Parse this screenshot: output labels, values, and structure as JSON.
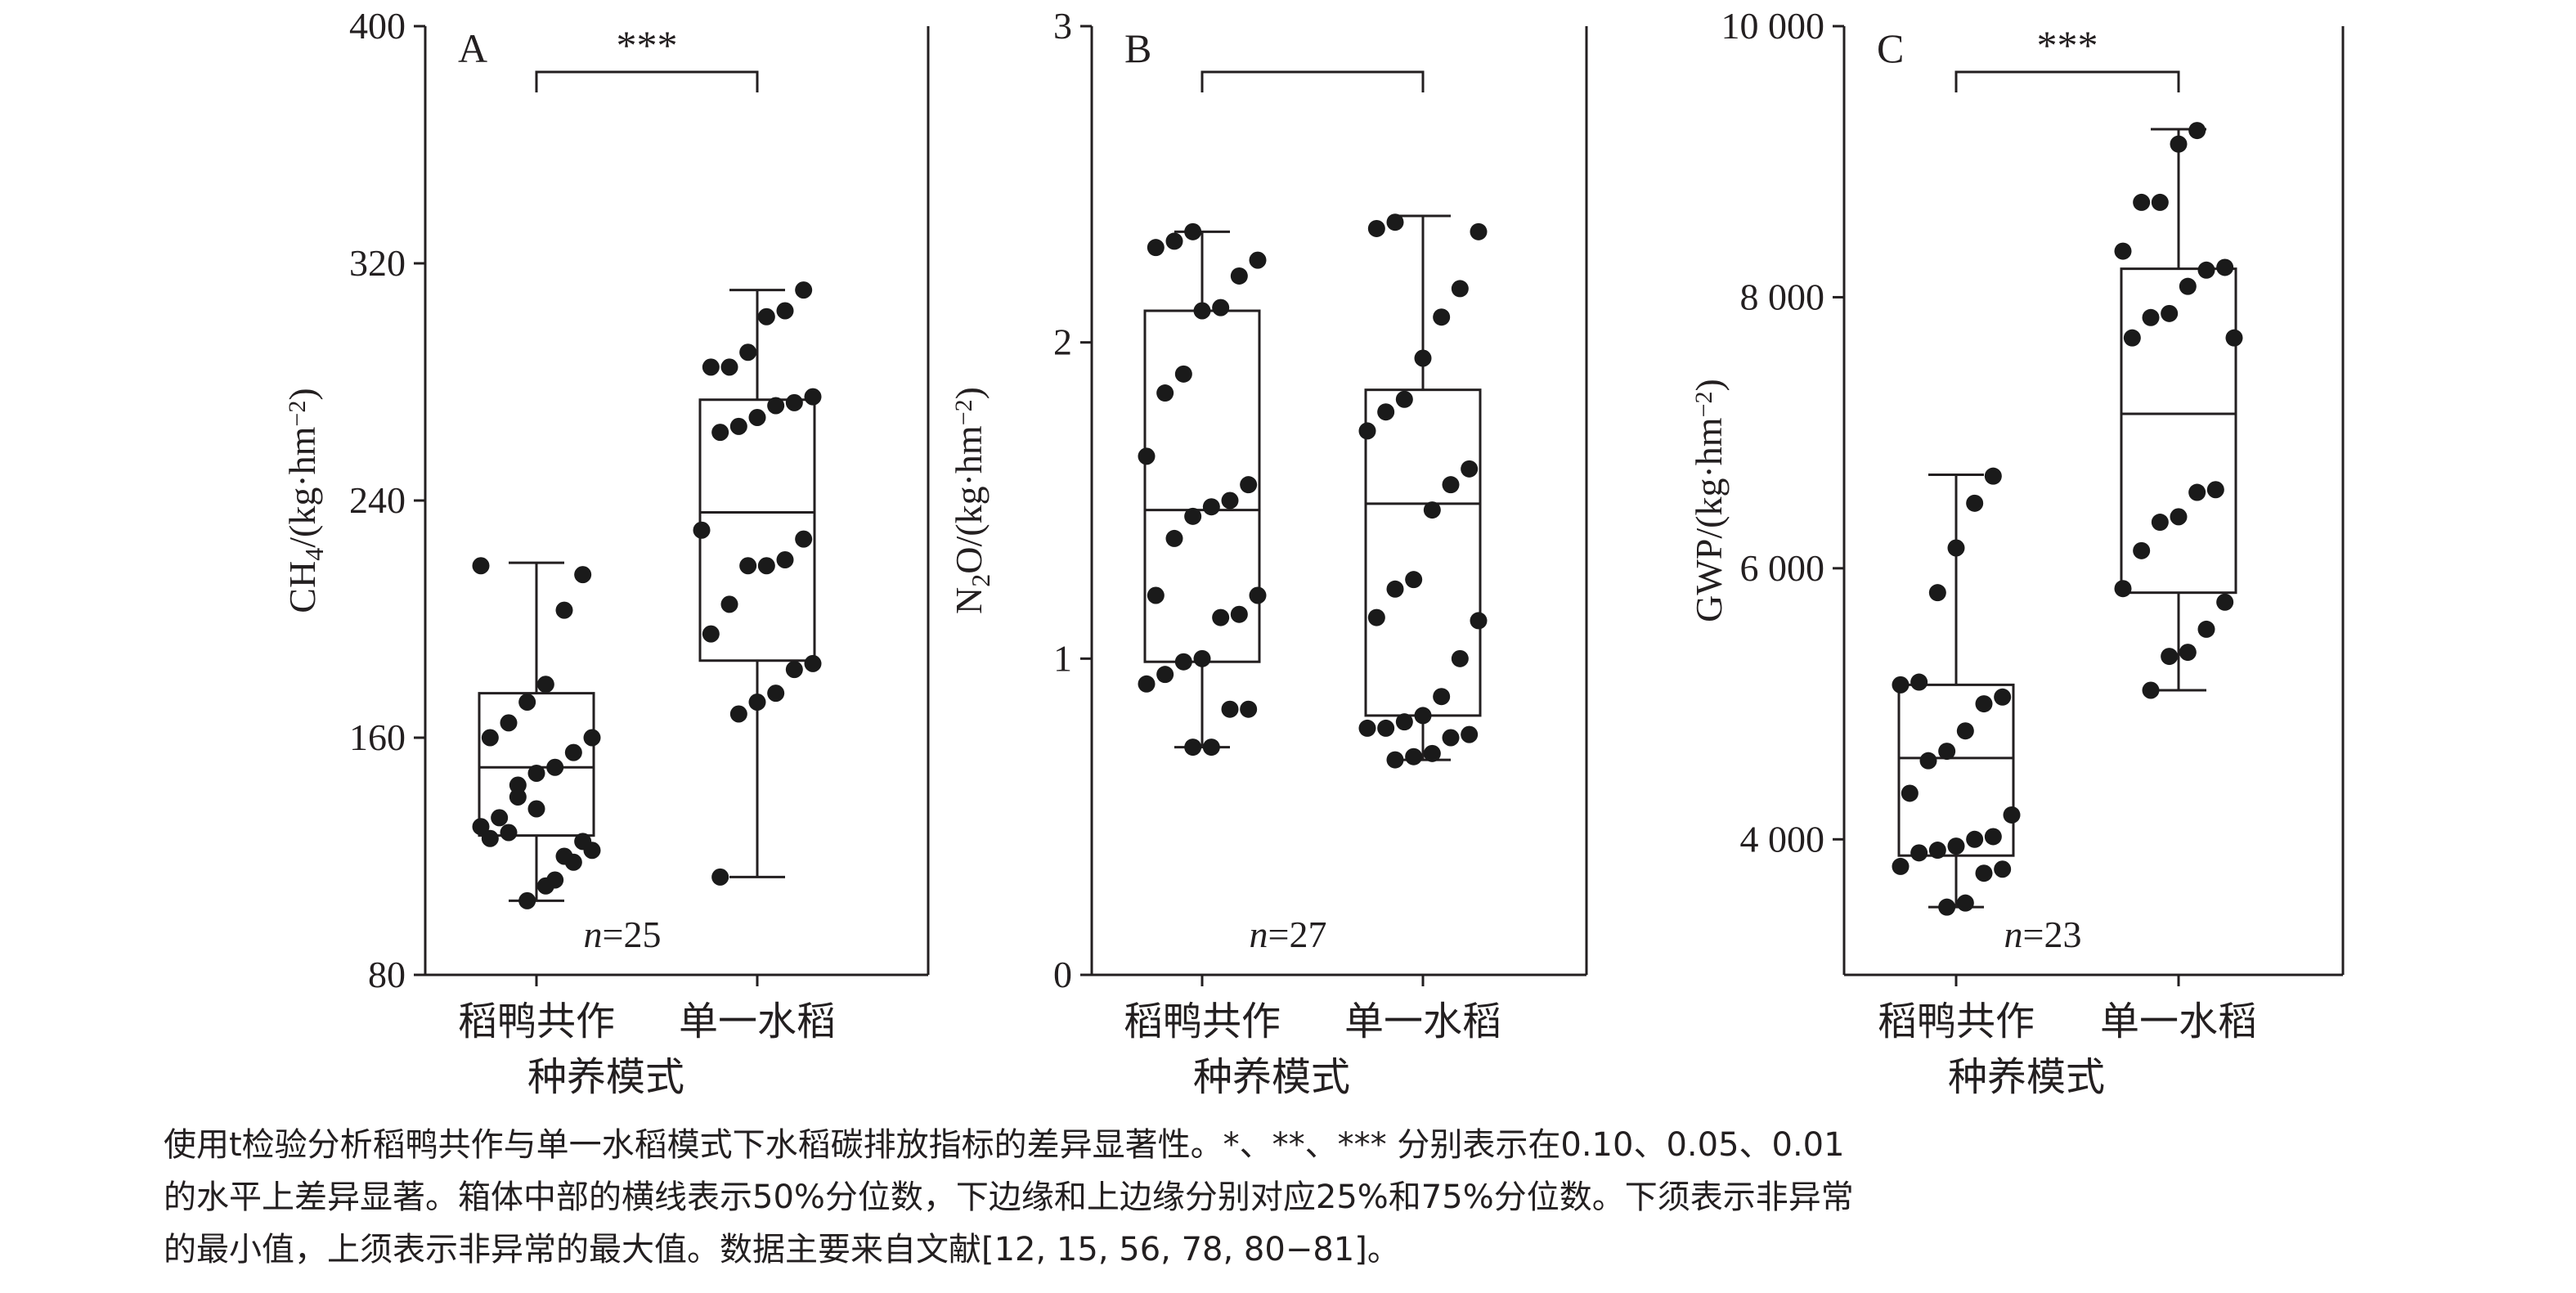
{
  "chart_data": [
    {
      "type": "box",
      "panel": "A",
      "ylabel": {
        "pre": "CH",
        "sub": "4",
        "post": "/(kg·hm",
        "sup": "−2",
        "end": ")"
      },
      "ylim": [
        80,
        400
      ],
      "yticks": [
        80,
        160,
        240,
        320,
        400
      ],
      "ytick_labels": [
        "80",
        "160",
        "240",
        "320",
        "400"
      ],
      "categories": [
        "稻鸭共作",
        "单一水稻"
      ],
      "xlabel": "种养模式",
      "n_label": {
        "n": "n",
        "eq": "=25"
      },
      "significance": "***",
      "series": [
        {
          "name": "稻鸭共作",
          "whisker_low": 105,
          "q1": 127,
          "median": 150,
          "q3": 175,
          "whisker_high": 219,
          "points": [
            218,
            215,
            203,
            178,
            172,
            165,
            160,
            160,
            155,
            150,
            148,
            140,
            133,
            130,
            125,
            120,
            110,
            105,
            128,
            126,
            122,
            118,
            112,
            136,
            144
          ]
        },
        {
          "name": "单一水稻",
          "whisker_low": 113,
          "q1": 186,
          "median": 236,
          "q3": 274,
          "whisker_high": 311,
          "points": [
            311,
            304,
            302,
            290,
            285,
            285,
            275,
            273,
            272,
            268,
            265,
            263,
            230,
            227,
            220,
            218,
            218,
            205,
            195,
            185,
            183,
            175,
            172,
            168,
            113
          ]
        }
      ]
    },
    {
      "type": "box",
      "panel": "B",
      "ylabel": {
        "pre": "N",
        "sub": "2",
        "post": "O/(kg·hm",
        "sup": "−2",
        "end": ")"
      },
      "ylim": [
        0,
        3
      ],
      "yticks": [
        0,
        1,
        2,
        3
      ],
      "ytick_labels": [
        "0",
        "1",
        "2",
        "3"
      ],
      "categories": [
        "稻鸭共作",
        "单一水稻"
      ],
      "xlabel": "种养模式",
      "n_label": {
        "n": "n",
        "eq": "=27"
      },
      "significance": "",
      "series": [
        {
          "name": "稻鸭共作",
          "whisker_low": 0.72,
          "q1": 0.99,
          "median": 1.47,
          "q3": 2.1,
          "whisker_high": 2.35,
          "points": [
            2.35,
            2.32,
            2.3,
            2.26,
            2.21,
            2.11,
            2.1,
            1.9,
            1.84,
            1.64,
            1.55,
            1.5,
            1.48,
            1.45,
            1.38,
            1.2,
            1.2,
            1.14,
            1.13,
            1.0,
            0.99,
            0.95,
            0.92,
            0.84,
            0.84,
            0.72,
            0.72
          ]
        },
        {
          "name": "单一水稻",
          "whisker_low": 0.68,
          "q1": 0.82,
          "median": 1.49,
          "q3": 1.85,
          "whisker_high": 2.4,
          "points": [
            2.38,
            2.36,
            2.35,
            2.17,
            2.08,
            1.95,
            1.82,
            1.78,
            1.72,
            1.6,
            1.55,
            1.47,
            1.25,
            1.22,
            1.13,
            1.12,
            1.0,
            0.88,
            0.82,
            0.8,
            0.78,
            0.78,
            0.76,
            0.75,
            0.7,
            0.69,
            0.68
          ]
        }
      ]
    },
    {
      "type": "box",
      "panel": "C",
      "ylabel": {
        "pre": "GWP/(kg·hm",
        "sub": "",
        "post": "",
        "sup": "−2",
        "end": ")"
      },
      "ylim": [
        3000,
        10000
      ],
      "yticks": [
        4000,
        6000,
        8000,
        10000
      ],
      "ytick_labels": [
        "4 000",
        "6 000",
        "8 000",
        "10 000"
      ],
      "categories": [
        "稻鸭共作",
        "单一水稻"
      ],
      "xlabel": "种养模式",
      "n_label": {
        "n": "n",
        "eq": "=23"
      },
      "significance": "***",
      "series": [
        {
          "name": "稻鸭共作",
          "whisker_low": 3500,
          "q1": 3880,
          "median": 4600,
          "q3": 5140,
          "whisker_high": 6690,
          "points": [
            6680,
            6480,
            6150,
            5820,
            5160,
            5140,
            5050,
            5000,
            4800,
            4650,
            4580,
            4340,
            4180,
            4020,
            4000,
            3950,
            3920,
            3900,
            3800,
            3780,
            3750,
            3530,
            3500
          ]
        },
        {
          "name": "单一水稻",
          "whisker_low": 5100,
          "q1": 5820,
          "median": 7140,
          "q3": 8210,
          "whisker_high": 9240,
          "points": [
            9230,
            9130,
            8700,
            8700,
            8340,
            8220,
            8200,
            8080,
            7880,
            7850,
            7700,
            7700,
            6580,
            6560,
            6380,
            6340,
            6130,
            5850,
            5750,
            5550,
            5380,
            5350,
            5100
          ]
        }
      ]
    }
  ],
  "caption": [
    "使用t检验分析稻鸭共作与单一水稻模式下水稻碳排放指标的差异显著性。*、**、*** 分别表示在0.10、0.05、0.01",
    "的水平上差异显著。箱体中部的横线表示50%分位数，下边缘和上边缘分别对应25%和75%分位数。下须表示非异常",
    "的最小值，上须表示非异常的最大值。数据主要来自文献[12, 15, 56, 78, 80−81]。"
  ],
  "colors": {
    "ink": "#231f20",
    "box_fill": "#ffffff",
    "point": "#1a1a1a"
  }
}
